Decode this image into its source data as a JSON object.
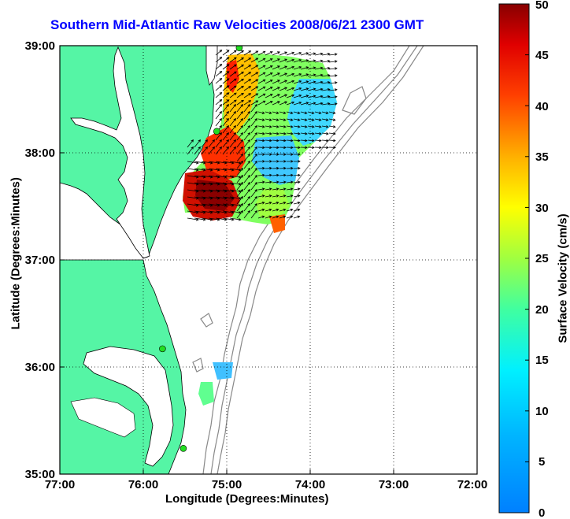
{
  "title": "Southern Mid-Atlantic Raw Velocities 2008/06/21 2300 GMT",
  "x_axis": {
    "label": "Longitude (Degrees:Minutes)",
    "ticks": [
      "77:00",
      "76:00",
      "75:00",
      "74:00",
      "73:00",
      "72:00"
    ]
  },
  "y_axis": {
    "label": "Latitude (Degrees:Minutes)",
    "ticks": [
      "39:00",
      "38:00",
      "37:00",
      "36:00",
      "35:00"
    ]
  },
  "colorbar": {
    "label": "Surface Velocity (cm/s)",
    "ticks": [
      "50",
      "45",
      "40",
      "35",
      "30",
      "25",
      "20",
      "15",
      "10",
      "5",
      "0"
    ],
    "colormap": "jet",
    "range": [
      0,
      50
    ]
  },
  "colors": {
    "title": "#0000ff",
    "land": "#55f5a5",
    "bathymetry": "#888888",
    "stations": "#22dd22"
  },
  "map": {
    "lon_range": [
      -77,
      -72
    ],
    "lat_range": [
      35,
      39
    ],
    "grid": true,
    "grid_style": "dotted",
    "stations": [
      {
        "lon": -74.85,
        "lat": 38.98
      },
      {
        "lon": -75.12,
        "lat": 38.2
      },
      {
        "lon": -75.77,
        "lat": 36.17
      },
      {
        "lon": -75.52,
        "lat": 35.24
      }
    ]
  }
}
